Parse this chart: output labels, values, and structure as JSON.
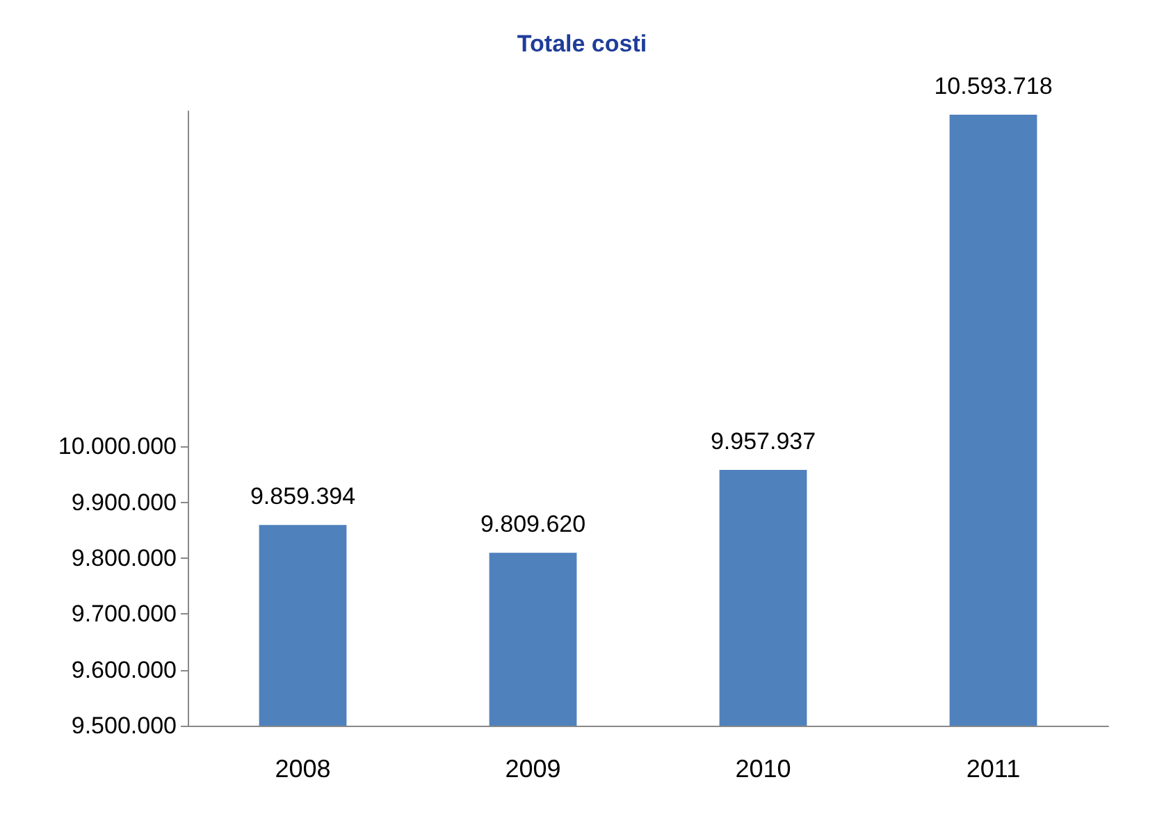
{
  "chart_data": {
    "type": "bar",
    "title": "Totale costi",
    "categories": [
      "2008",
      "2009",
      "2010",
      "2011"
    ],
    "values": [
      9859394,
      9809620,
      9957937,
      10593718
    ],
    "value_labels": [
      "9.859.394",
      "9.809.620",
      "9.957.937",
      "10.593.718"
    ],
    "color": "#4f81bd",
    "ylim": [
      9500000,
      10600000
    ],
    "yticks": [
      {
        "value": 9500000,
        "label": "9.500.000"
      },
      {
        "value": 9600000,
        "label": "9.600.000"
      },
      {
        "value": 9700000,
        "label": "9.700.000"
      },
      {
        "value": 9800000,
        "label": "9.800.000"
      },
      {
        "value": 9900000,
        "label": "9.900.000"
      },
      {
        "value": 10000000,
        "label": "10.000.000"
      }
    ],
    "grid": false
  }
}
